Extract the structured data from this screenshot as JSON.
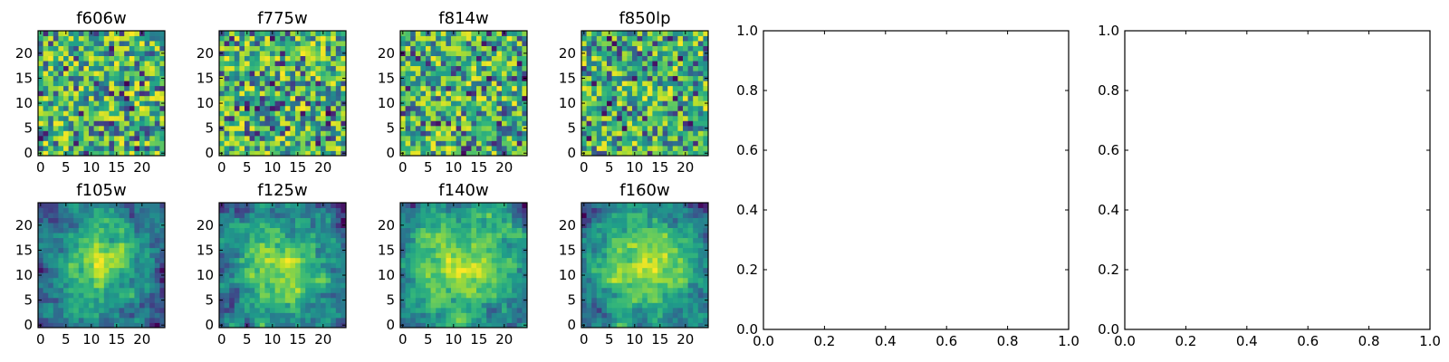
{
  "chart_data": [
    {
      "type": "heatmap",
      "title": "f606w",
      "xlim": [
        -0.5,
        24.5
      ],
      "ylim": [
        -0.5,
        24.5
      ],
      "xticks": [
        0,
        5,
        10,
        15,
        20
      ],
      "yticks": [
        0,
        5,
        10,
        15,
        20
      ],
      "grid_size": 25,
      "pattern": "noise",
      "colormap": "viridis"
    },
    {
      "type": "heatmap",
      "title": "f775w",
      "xlim": [
        -0.5,
        24.5
      ],
      "ylim": [
        -0.5,
        24.5
      ],
      "xticks": [
        0,
        5,
        10,
        15,
        20
      ],
      "yticks": [
        0,
        5,
        10,
        15,
        20
      ],
      "grid_size": 25,
      "pattern": "noise",
      "colormap": "viridis"
    },
    {
      "type": "heatmap",
      "title": "f814w",
      "xlim": [
        -0.5,
        24.5
      ],
      "ylim": [
        -0.5,
        24.5
      ],
      "xticks": [
        0,
        5,
        10,
        15,
        20
      ],
      "yticks": [
        0,
        5,
        10,
        15,
        20
      ],
      "grid_size": 25,
      "pattern": "noise",
      "colormap": "viridis"
    },
    {
      "type": "heatmap",
      "title": "f850lp",
      "xlim": [
        -0.5,
        24.5
      ],
      "ylim": [
        -0.5,
        24.5
      ],
      "xticks": [
        0,
        5,
        10,
        15,
        20
      ],
      "yticks": [
        0,
        5,
        10,
        15,
        20
      ],
      "grid_size": 25,
      "pattern": "noise",
      "colormap": "viridis"
    },
    {
      "type": "line",
      "title": "",
      "xlim": [
        0.0,
        1.0
      ],
      "ylim": [
        0.0,
        1.0
      ],
      "xticks": [
        "0.0",
        "0.2",
        "0.4",
        "0.6",
        "0.8",
        "1.0"
      ],
      "yticks": [
        "0.0",
        "0.2",
        "0.4",
        "0.6",
        "0.8",
        "1.0"
      ],
      "series": []
    },
    {
      "type": "line",
      "title": "",
      "xlim": [
        0.0,
        1.0
      ],
      "ylim": [
        0.0,
        1.0
      ],
      "xticks": [
        "0.0",
        "0.2",
        "0.4",
        "0.6",
        "0.8",
        "1.0"
      ],
      "yticks": [
        "0.0",
        "0.2",
        "0.4",
        "0.6",
        "0.8",
        "1.0"
      ],
      "series": []
    },
    {
      "type": "heatmap",
      "title": "f105w",
      "xlim": [
        -0.5,
        24.5
      ],
      "ylim": [
        -0.5,
        24.5
      ],
      "xticks": [
        0,
        5,
        10,
        15,
        20
      ],
      "yticks": [
        0,
        5,
        10,
        15,
        20
      ],
      "grid_size": 25,
      "pattern": "smooth-centered",
      "colormap": "viridis"
    },
    {
      "type": "heatmap",
      "title": "f125w",
      "xlim": [
        -0.5,
        24.5
      ],
      "ylim": [
        -0.5,
        24.5
      ],
      "xticks": [
        0,
        5,
        10,
        15,
        20
      ],
      "yticks": [
        0,
        5,
        10,
        15,
        20
      ],
      "grid_size": 25,
      "pattern": "smooth-centered",
      "colormap": "viridis"
    },
    {
      "type": "heatmap",
      "title": "f140w",
      "xlim": [
        -0.5,
        24.5
      ],
      "ylim": [
        -0.5,
        24.5
      ],
      "xticks": [
        0,
        5,
        10,
        15,
        20
      ],
      "yticks": [
        0,
        5,
        10,
        15,
        20
      ],
      "grid_size": 25,
      "pattern": "smooth-centered",
      "colormap": "viridis"
    },
    {
      "type": "heatmap",
      "title": "f160w",
      "xlim": [
        -0.5,
        24.5
      ],
      "ylim": [
        -0.5,
        24.5
      ],
      "xticks": [
        0,
        5,
        10,
        15,
        20
      ],
      "yticks": [
        0,
        5,
        10,
        15,
        20
      ],
      "grid_size": 25,
      "pattern": "smooth-centered",
      "colormap": "viridis"
    }
  ]
}
